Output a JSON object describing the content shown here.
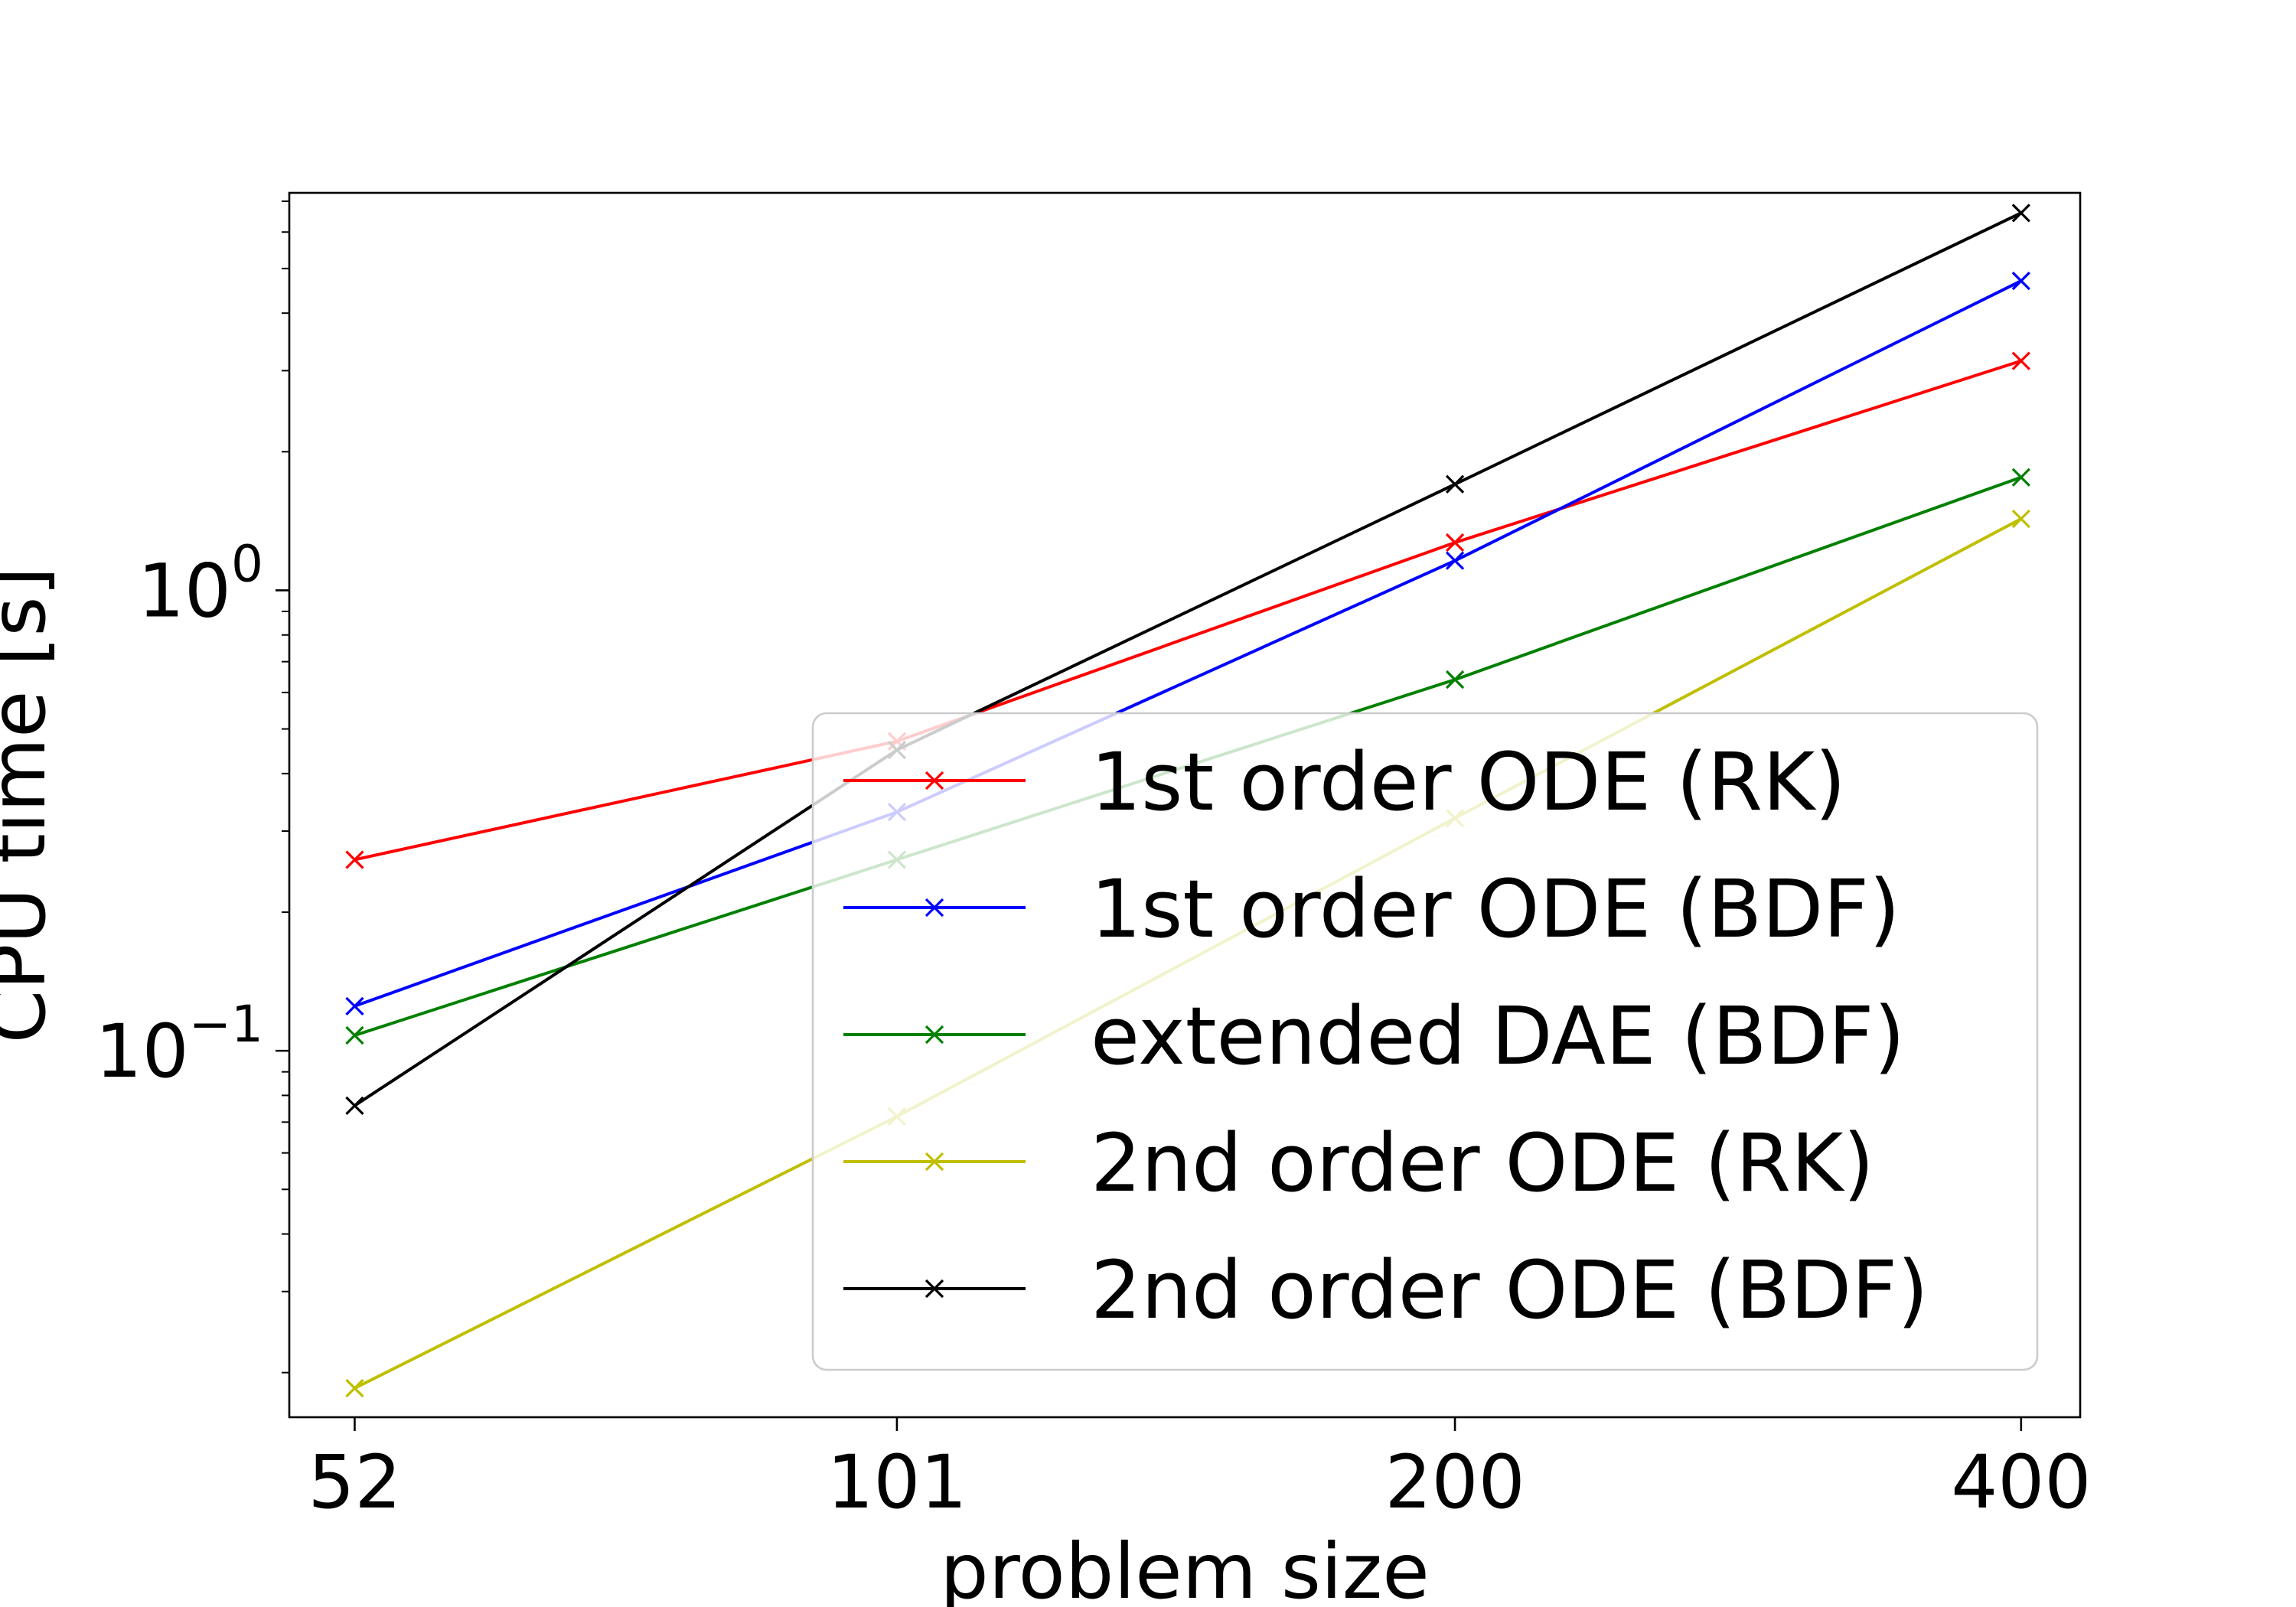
{
  "chart_data": {
    "type": "line",
    "xlabel": "problem size",
    "ylabel": "CPU time [s]",
    "x_scale": "log",
    "y_scale": "log",
    "x": [
      52,
      101,
      200,
      400
    ],
    "x_tick_labels": [
      "52",
      "101",
      "200",
      "400"
    ],
    "xlim": [
      48,
      430
    ],
    "ylim": [
      0.016,
      7.3
    ],
    "y_major_ticks": [
      {
        "value": 1.0,
        "base": "10",
        "exp": "0"
      },
      {
        "value": 0.1,
        "base": "10",
        "exp": "−1"
      }
    ],
    "y_minor_ticks": [
      0.02,
      0.03,
      0.04,
      0.05,
      0.06,
      0.07,
      0.08,
      0.09,
      0.2,
      0.3,
      0.4,
      0.5,
      0.6,
      0.7,
      0.8,
      0.9,
      2,
      3,
      4,
      5,
      6,
      7
    ],
    "grid": false,
    "legend_position": "lower-right",
    "marker": "x",
    "series": [
      {
        "name": "1st order ODE (RK)",
        "color": "#ff0000",
        "values": [
          0.26,
          0.47,
          1.27,
          3.15
        ]
      },
      {
        "name": "1st order ODE (BDF)",
        "color": "#0000ff",
        "values": [
          0.125,
          0.33,
          1.16,
          4.7
        ]
      },
      {
        "name": "extended DAE (BDF)",
        "color": "#008000",
        "values": [
          0.108,
          0.26,
          0.64,
          1.76
        ]
      },
      {
        "name": "2nd order ODE (RK)",
        "color": "#bfbf00",
        "values": [
          0.0185,
          0.072,
          0.32,
          1.43
        ]
      },
      {
        "name": "2nd order ODE (BDF)",
        "color": "#000000",
        "values": [
          0.076,
          0.45,
          1.7,
          6.6
        ]
      }
    ]
  }
}
